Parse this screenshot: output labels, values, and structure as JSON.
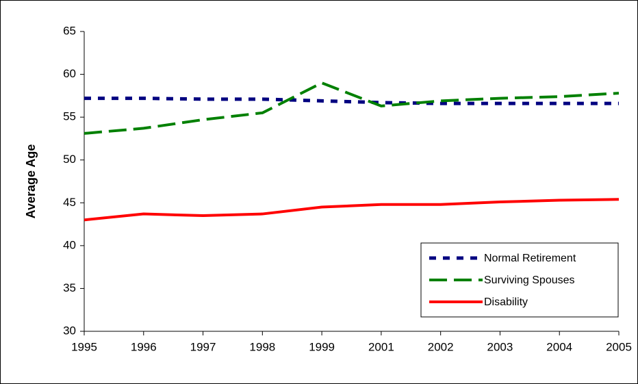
{
  "chart_data": {
    "type": "line",
    "y_label": "Average Age",
    "categories": [
      "1995",
      "1996",
      "1997",
      "1998",
      "1999",
      "2001",
      "2002",
      "2003",
      "2004",
      "2005"
    ],
    "series": [
      {
        "name": "Normal Retirement",
        "color": "#000080",
        "dash": "short",
        "values": [
          57.2,
          57.2,
          57.1,
          57.1,
          56.9,
          56.7,
          56.6,
          56.6,
          56.6,
          56.6
        ]
      },
      {
        "name": "Surviving Spouses",
        "color": "#008000",
        "dash": "long",
        "values": [
          53.1,
          53.7,
          54.7,
          55.5,
          59.0,
          56.3,
          56.9,
          57.2,
          57.4,
          57.8
        ]
      },
      {
        "name": "Disability",
        "color": "#ff0000",
        "dash": "solid",
        "values": [
          43.0,
          43.7,
          43.5,
          43.7,
          44.5,
          44.8,
          44.8,
          45.1,
          45.3,
          45.4
        ]
      }
    ],
    "ylim": [
      30,
      65
    ],
    "yticks": [
      30,
      35,
      40,
      45,
      50,
      55,
      60,
      65
    ],
    "grid": false,
    "legend": "lower right"
  }
}
